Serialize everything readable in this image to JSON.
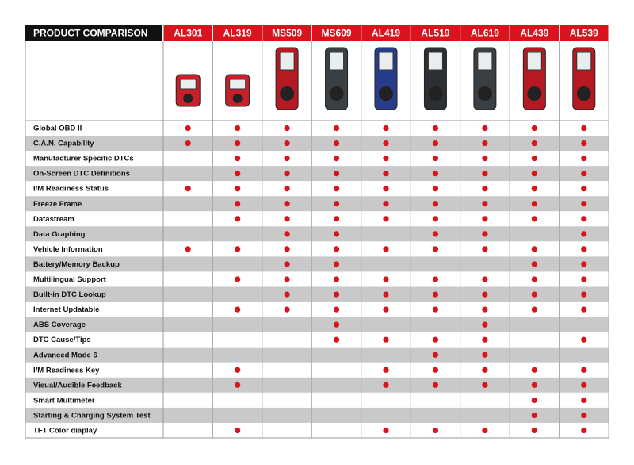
{
  "header": {
    "title": "PRODUCT COMPARISON"
  },
  "products": [
    "AL301",
    "AL319",
    "MS509",
    "MS609",
    "AL419",
    "AL519",
    "AL619",
    "AL439",
    "AL539"
  ],
  "features": [
    {
      "label": "Global OBD II",
      "cells": [
        1,
        1,
        1,
        1,
        1,
        1,
        1,
        1,
        1
      ]
    },
    {
      "label": "C.A.N. Capability",
      "cells": [
        1,
        1,
        1,
        1,
        1,
        1,
        1,
        1,
        1
      ]
    },
    {
      "label": "Manufacturer Specific DTCs",
      "cells": [
        0,
        1,
        1,
        1,
        1,
        1,
        1,
        1,
        1
      ]
    },
    {
      "label": "On-Screen DTC Definitions",
      "cells": [
        0,
        1,
        1,
        1,
        1,
        1,
        1,
        1,
        1
      ]
    },
    {
      "label": "I/M Readiness Status",
      "cells": [
        1,
        1,
        1,
        1,
        1,
        1,
        1,
        1,
        1
      ]
    },
    {
      "label": "Freeze Frame",
      "cells": [
        0,
        1,
        1,
        1,
        1,
        1,
        1,
        1,
        1
      ]
    },
    {
      "label": "Datastream",
      "cells": [
        0,
        1,
        1,
        1,
        1,
        1,
        1,
        1,
        1
      ]
    },
    {
      "label": "Data Graphing",
      "cells": [
        0,
        0,
        1,
        1,
        0,
        1,
        1,
        0,
        1
      ]
    },
    {
      "label": "Vehicle Information",
      "cells": [
        1,
        1,
        1,
        1,
        1,
        1,
        1,
        1,
        1
      ]
    },
    {
      "label": "Battery/Memory Backup",
      "cells": [
        0,
        0,
        1,
        1,
        0,
        0,
        0,
        1,
        1
      ]
    },
    {
      "label": "Multilingual Support",
      "cells": [
        0,
        1,
        1,
        1,
        1,
        1,
        1,
        1,
        1
      ]
    },
    {
      "label": "Built-in DTC Lookup",
      "cells": [
        0,
        0,
        1,
        1,
        1,
        1,
        1,
        1,
        1
      ]
    },
    {
      "label": "Internet Updatable",
      "cells": [
        0,
        1,
        1,
        1,
        1,
        1,
        1,
        1,
        1
      ]
    },
    {
      "label": "ABS Coverage",
      "cells": [
        0,
        0,
        0,
        1,
        0,
        0,
        1,
        0,
        0
      ]
    },
    {
      "label": "DTC Cause/Tips",
      "cells": [
        0,
        0,
        0,
        1,
        1,
        1,
        1,
        0,
        1
      ]
    },
    {
      "label": "Advanced Mode 6",
      "cells": [
        0,
        0,
        0,
        0,
        0,
        1,
        1,
        0,
        0
      ]
    },
    {
      "label": "I/M Readiness Key",
      "cells": [
        0,
        1,
        0,
        0,
        1,
        1,
        1,
        1,
        1
      ]
    },
    {
      "label": "Visual/Audible Feedback",
      "cells": [
        0,
        1,
        0,
        0,
        1,
        1,
        1,
        1,
        1
      ]
    },
    {
      "label": "Smart Multimeter",
      "cells": [
        0,
        0,
        0,
        0,
        0,
        0,
        0,
        1,
        1
      ]
    },
    {
      "label": "Starting & Charging System Test",
      "cells": [
        0,
        0,
        0,
        0,
        0,
        0,
        0,
        1,
        1
      ]
    },
    {
      "label": "TFT Color diaplay",
      "cells": [
        0,
        1,
        0,
        0,
        1,
        1,
        1,
        1,
        1
      ]
    }
  ]
}
